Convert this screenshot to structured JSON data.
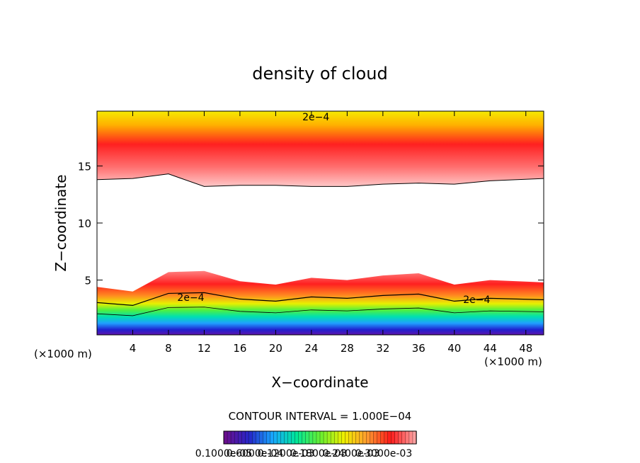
{
  "chart_data": {
    "type": "heatmap",
    "title": "density of cloud",
    "xlabel": "X−coordinate",
    "ylabel": "Z−coordinate",
    "x_unit_left": "(×1000 m)",
    "x_unit_right": "(×1000 m)",
    "xlim": [
      0,
      50
    ],
    "ylim": [
      0.2,
      19.8
    ],
    "xticks": [
      4,
      8,
      12,
      16,
      20,
      24,
      28,
      32,
      36,
      40,
      44,
      48
    ],
    "yticks": [
      5,
      10,
      15
    ],
    "contour_interval_text": "CONTOUR INTERVAL = 1.000E−04",
    "contour_label": "2e−4",
    "contour_label_positions": [
      [
        24.5,
        19.3
      ],
      [
        10.5,
        3.5
      ],
      [
        42.5,
        3.3
      ]
    ],
    "colorbar_labels": [
      "0.1000e-05",
      "0.6000e-04",
      "0.1200e-03",
      "0.1800e-03",
      "0.2400e-03",
      "0.3000e-03"
    ],
    "colormap": [
      "#6a0f8e",
      "#2626c8",
      "#18a8ff",
      "#00e69a",
      "#66f032",
      "#f0f000",
      "#ff9a30",
      "#ff1a1a",
      "#ffa0a0"
    ],
    "upper_layer": {
      "base_z": [
        13.8,
        13.9,
        14.3,
        13.2,
        13.3,
        13.3,
        13.2,
        13.2,
        13.4,
        13.5,
        13.4,
        13.7,
        13.9
      ],
      "top_z": 19.8,
      "max_z": 16.0
    },
    "lower_layer": {
      "base_z": 0.6,
      "top_z": [
        4.4,
        4.0,
        5.7,
        5.8,
        4.9,
        4.6,
        5.2,
        5.0,
        5.4,
        5.6,
        4.6,
        5.0,
        4.8
      ],
      "max_z": 4.0
    },
    "x_samples": [
      0,
      4,
      8,
      12,
      16,
      20,
      24,
      28,
      32,
      36,
      40,
      44,
      50
    ]
  }
}
